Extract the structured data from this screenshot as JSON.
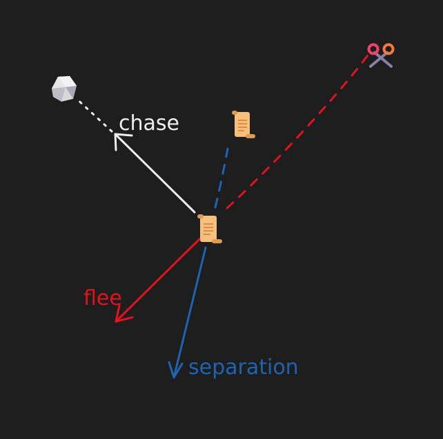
{
  "labels": {
    "chase": "chase",
    "flee": "flee",
    "separation": "separation"
  },
  "colors": {
    "background": "#1f1e1e",
    "chase": "#eeeeee",
    "flee": "#e0141e",
    "separation": "#1f64b3",
    "scroll": "#f7bf7c",
    "scroll_dark": "#e09a55",
    "rock": "#d8d8dc"
  },
  "icons": {
    "agent": "scroll-icon",
    "neighbor": "scroll-icon",
    "target": "rock-icon",
    "threat": "scissors-icon"
  }
}
